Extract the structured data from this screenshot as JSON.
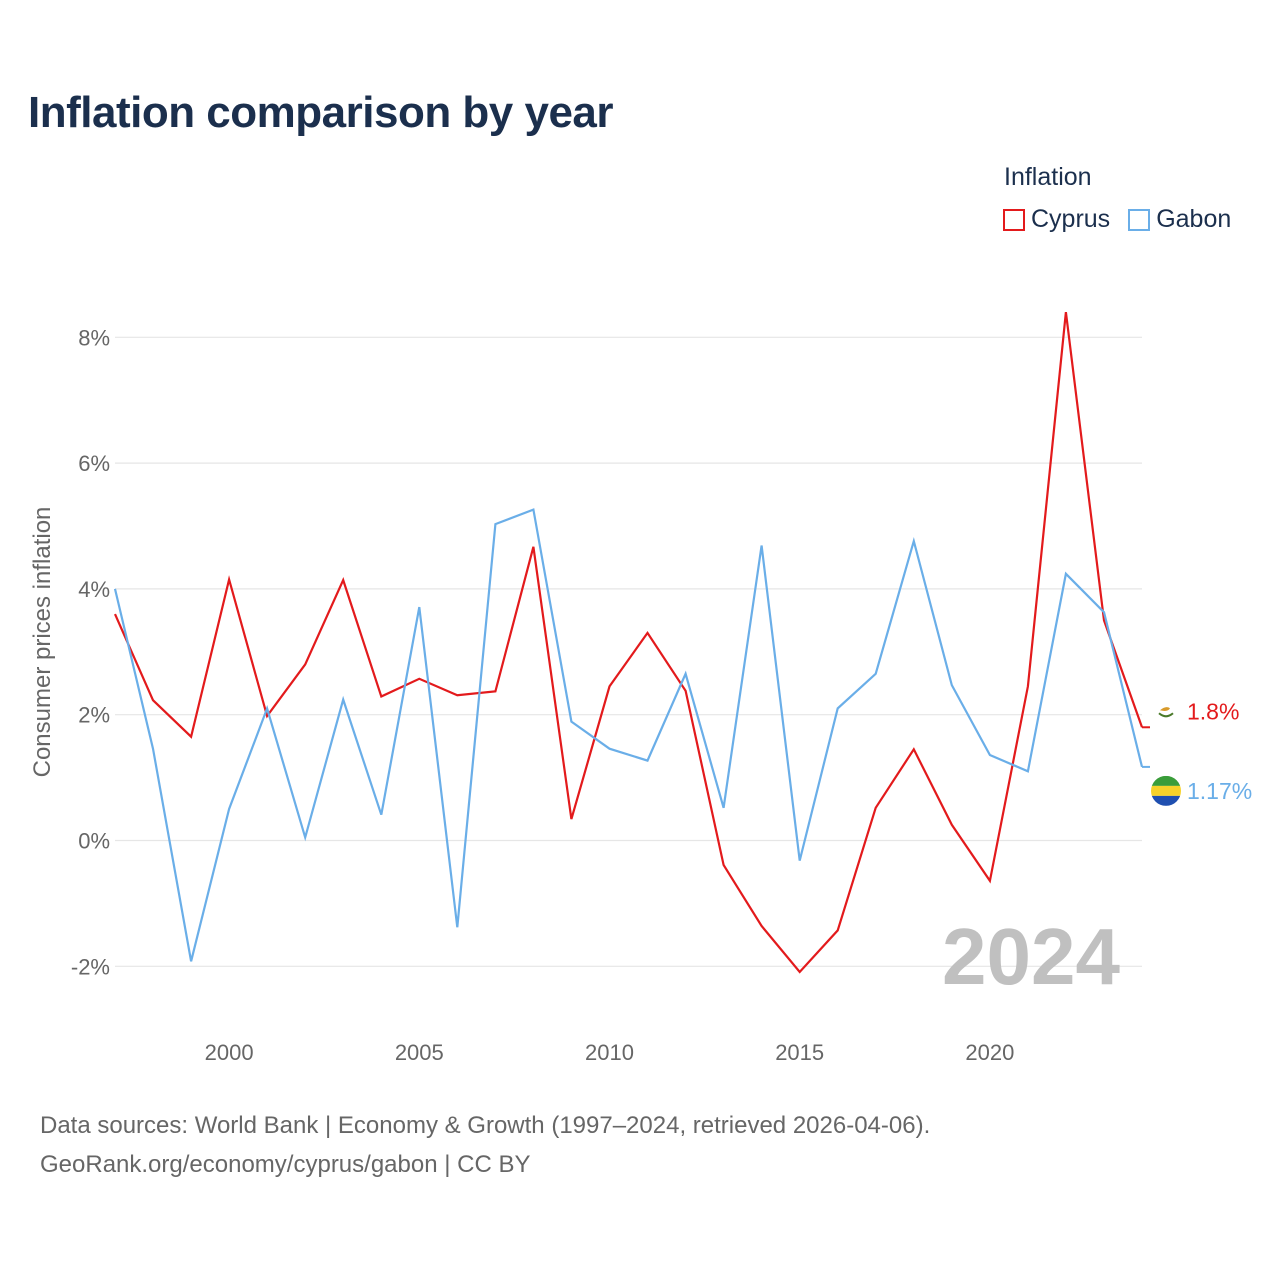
{
  "title": "Inflation comparison by year",
  "legend": {
    "title": "Inflation",
    "items": [
      {
        "name": "Cyprus",
        "color": "#e31a1c"
      },
      {
        "name": "Gabon",
        "color": "#6aaee8"
      }
    ]
  },
  "footer": {
    "line1": "Data sources: World Bank | Economy & Growth (1997–2024, retrieved 2026-04-06).",
    "line2": "GeoRank.org/economy/cyprus/gabon | CC BY"
  },
  "chart_data": {
    "type": "line",
    "title": "Inflation comparison by year",
    "xlabel": "",
    "ylabel": "Consumer prices inflation",
    "xlim": [
      1997,
      2024
    ],
    "ylim": [
      -3,
      9
    ],
    "x_ticks": [
      2000,
      2005,
      2010,
      2015,
      2020
    ],
    "x_tick_labels": [
      "2000",
      "2005",
      "2010",
      "2015",
      "2020"
    ],
    "y_ticks": [
      -2,
      0,
      2,
      4,
      6,
      8
    ],
    "y_tick_labels": [
      "-2%",
      "0%",
      "2%",
      "4%",
      "6%",
      "8%"
    ],
    "current_year_label": "2024",
    "x": [
      1997,
      1998,
      1999,
      2000,
      2001,
      2002,
      2003,
      2004,
      2005,
      2006,
      2007,
      2008,
      2009,
      2010,
      2011,
      2012,
      2013,
      2014,
      2015,
      2016,
      2017,
      2018,
      2019,
      2020,
      2021,
      2022,
      2023,
      2024
    ],
    "series": [
      {
        "name": "Cyprus",
        "color": "#e31a1c",
        "end_label": "1.8%",
        "values": [
          3.6,
          2.23,
          1.65,
          4.15,
          1.98,
          2.8,
          4.14,
          2.29,
          2.57,
          2.31,
          2.37,
          4.67,
          0.34,
          2.45,
          3.3,
          2.38,
          -0.39,
          -1.36,
          -2.09,
          -1.43,
          0.52,
          1.45,
          0.25,
          -0.64,
          2.45,
          8.4,
          3.5,
          1.8
        ]
      },
      {
        "name": "Gabon",
        "color": "#6aaee8",
        "end_label": "1.17%",
        "values": [
          4.0,
          1.46,
          -1.92,
          0.5,
          2.1,
          0.05,
          2.24,
          0.41,
          3.71,
          -1.38,
          5.03,
          5.26,
          1.89,
          1.46,
          1.27,
          2.65,
          0.52,
          4.69,
          -0.32,
          2.1,
          2.65,
          4.76,
          2.47,
          1.36,
          1.1,
          4.24,
          3.63,
          1.17
        ]
      }
    ]
  }
}
